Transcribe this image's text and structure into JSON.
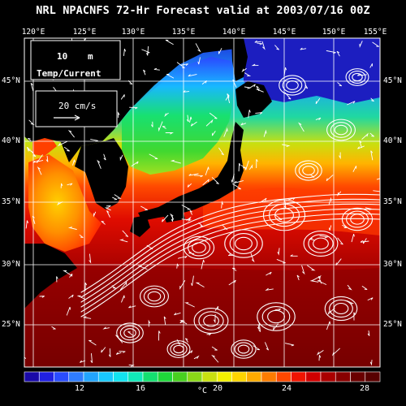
{
  "title": "NRL NPACNFS 72-Hr Forecast valid at 2003/07/16 00Z",
  "lon_labels": [
    "120°E",
    "125°E",
    "130°E",
    "135°E",
    "140°E",
    "145°E",
    "150°E",
    "155°E"
  ],
  "lat_labels_left": [
    "45°N",
    "40°N",
    "35°N",
    "30°N",
    "25°N"
  ],
  "lat_labels_right": [
    "45°N",
    "40°N",
    "35°N",
    "30°N",
    "25°N"
  ],
  "legend": {
    "depth_value": "10",
    "depth_unit": "m",
    "field_label": "Temp/Current",
    "vector_scale": "20 cm/s"
  },
  "colorbar": {
    "unit": "°C",
    "tick_labels": [
      "12",
      "16",
      "20",
      "24",
      "28"
    ],
    "range": [
      10,
      29
    ],
    "colors": [
      "#1a0aa8",
      "#2020e0",
      "#2a4cff",
      "#2f7cff",
      "#22a4ff",
      "#18c8ff",
      "#12e2f0",
      "#10e8b8",
      "#14e070",
      "#1fd83a",
      "#48d020",
      "#8ad818",
      "#c8e010",
      "#f2f000",
      "#ffd400",
      "#ffaa00",
      "#ff7c00",
      "#ff4800",
      "#f01400",
      "#d00000",
      "#aa0000",
      "#880000",
      "#6a0000",
      "#580000"
    ]
  },
  "map": {
    "lon_range": [
      120,
      155
    ],
    "lat_range": [
      22,
      48
    ],
    "grid": true,
    "gridline_color": "#ffffff",
    "land_color": "#000000"
  }
}
